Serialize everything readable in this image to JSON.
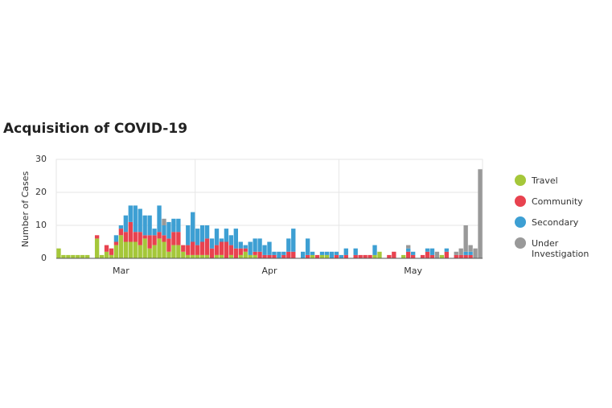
{
  "chart_data": {
    "type": "stacked-bar",
    "title": "Acquisition of COVID-19",
    "y_label": "Number of Cases",
    "categories": [
      null,
      null,
      null,
      null,
      null,
      null,
      null,
      null,
      null,
      null,
      null,
      null,
      null,
      "Mar",
      null,
      null,
      null,
      null,
      null,
      null,
      null,
      null,
      null,
      null,
      null,
      null,
      null,
      null,
      null,
      null,
      null,
      null,
      null,
      null,
      null,
      null,
      null,
      null,
      null,
      null,
      null,
      null,
      null,
      null,
      "Apr",
      null,
      null,
      null,
      null,
      null,
      null,
      null,
      null,
      null,
      null,
      null,
      null,
      null,
      null,
      null,
      null,
      null,
      null,
      null,
      null,
      null,
      null,
      null,
      null,
      null,
      null,
      null,
      null,
      null,
      "May",
      null,
      null,
      null,
      null,
      null,
      null,
      null,
      null,
      null,
      null,
      null,
      null,
      null,
      null
    ],
    "series": [
      {
        "name": "Travel",
        "color": "#a5c73a",
        "values": [
          3,
          1,
          1,
          1,
          1,
          1,
          1,
          0,
          6,
          1,
          2,
          1,
          4,
          7,
          5,
          5,
          5,
          4,
          6,
          3,
          4,
          6,
          5,
          2,
          4,
          4,
          2,
          1,
          1,
          1,
          1,
          1,
          0,
          1,
          1,
          0,
          1,
          0,
          1,
          2,
          1,
          1,
          0,
          0,
          0,
          0,
          0,
          0,
          0,
          0,
          0,
          0,
          0,
          1,
          0,
          1,
          1,
          0,
          0,
          0,
          0,
          0,
          0,
          0,
          0,
          0,
          1,
          2,
          0,
          0,
          0,
          0,
          1,
          0,
          0,
          0,
          0,
          0,
          0,
          0,
          1,
          0,
          0,
          0,
          0,
          0,
          0,
          0,
          0
        ]
      },
      {
        "name": "Community",
        "color": "#e8424f",
        "values": [
          0,
          0,
          0,
          0,
          0,
          0,
          0,
          0,
          1,
          0,
          2,
          2,
          1,
          2,
          3,
          6,
          3,
          4,
          1,
          4,
          3,
          2,
          2,
          4,
          4,
          4,
          2,
          3,
          4,
          3,
          4,
          5,
          3,
          3,
          4,
          5,
          3,
          3,
          2,
          1,
          0,
          1,
          2,
          1,
          1,
          1,
          0,
          1,
          2,
          2,
          0,
          0,
          1,
          0,
          1,
          0,
          0,
          0,
          1,
          0,
          1,
          0,
          1,
          1,
          1,
          1,
          0,
          0,
          0,
          1,
          2,
          0,
          0,
          2,
          1,
          0,
          1,
          2,
          1,
          0,
          0,
          2,
          0,
          1,
          1,
          1,
          1,
          0,
          0
        ]
      },
      {
        "name": "Secondary",
        "color": "#3d9fd3",
        "values": [
          0,
          0,
          0,
          0,
          0,
          0,
          0,
          0,
          0,
          0,
          0,
          0,
          2,
          1,
          5,
          5,
          8,
          7,
          6,
          6,
          2,
          8,
          3,
          5,
          4,
          4,
          0,
          6,
          9,
          5,
          5,
          4,
          3,
          5,
          1,
          4,
          3,
          6,
          2,
          1,
          4,
          4,
          4,
          3,
          4,
          1,
          2,
          1,
          4,
          7,
          0,
          2,
          5,
          1,
          0,
          1,
          1,
          2,
          1,
          1,
          2,
          0,
          2,
          0,
          0,
          0,
          3,
          0,
          0,
          0,
          0,
          0,
          0,
          1,
          1,
          0,
          0,
          1,
          2,
          0,
          0,
          1,
          0,
          0,
          0,
          1,
          1,
          0,
          0
        ]
      },
      {
        "name": "Under Investigation",
        "color": "#999999",
        "values": [
          0,
          0,
          0,
          0,
          0,
          0,
          0,
          0,
          0,
          0,
          0,
          0,
          0,
          0,
          0,
          0,
          0,
          0,
          0,
          0,
          0,
          0,
          2,
          0,
          0,
          0,
          0,
          0,
          0,
          0,
          0,
          0,
          0,
          0,
          0,
          0,
          0,
          0,
          0,
          0,
          0,
          0,
          0,
          0,
          0,
          0,
          0,
          0,
          0,
          0,
          0,
          0,
          0,
          0,
          0,
          0,
          0,
          0,
          0,
          0,
          0,
          0,
          0,
          0,
          0,
          0,
          0,
          0,
          0,
          0,
          0,
          0,
          0,
          1,
          0,
          0,
          0,
          0,
          0,
          2,
          0,
          0,
          0,
          1,
          2,
          8,
          2,
          3,
          27
        ]
      }
    ],
    "ylim": [
      0,
      30
    ],
    "yticks": [
      0,
      10,
      20,
      30
    ],
    "grid": true,
    "legend": "right"
  }
}
